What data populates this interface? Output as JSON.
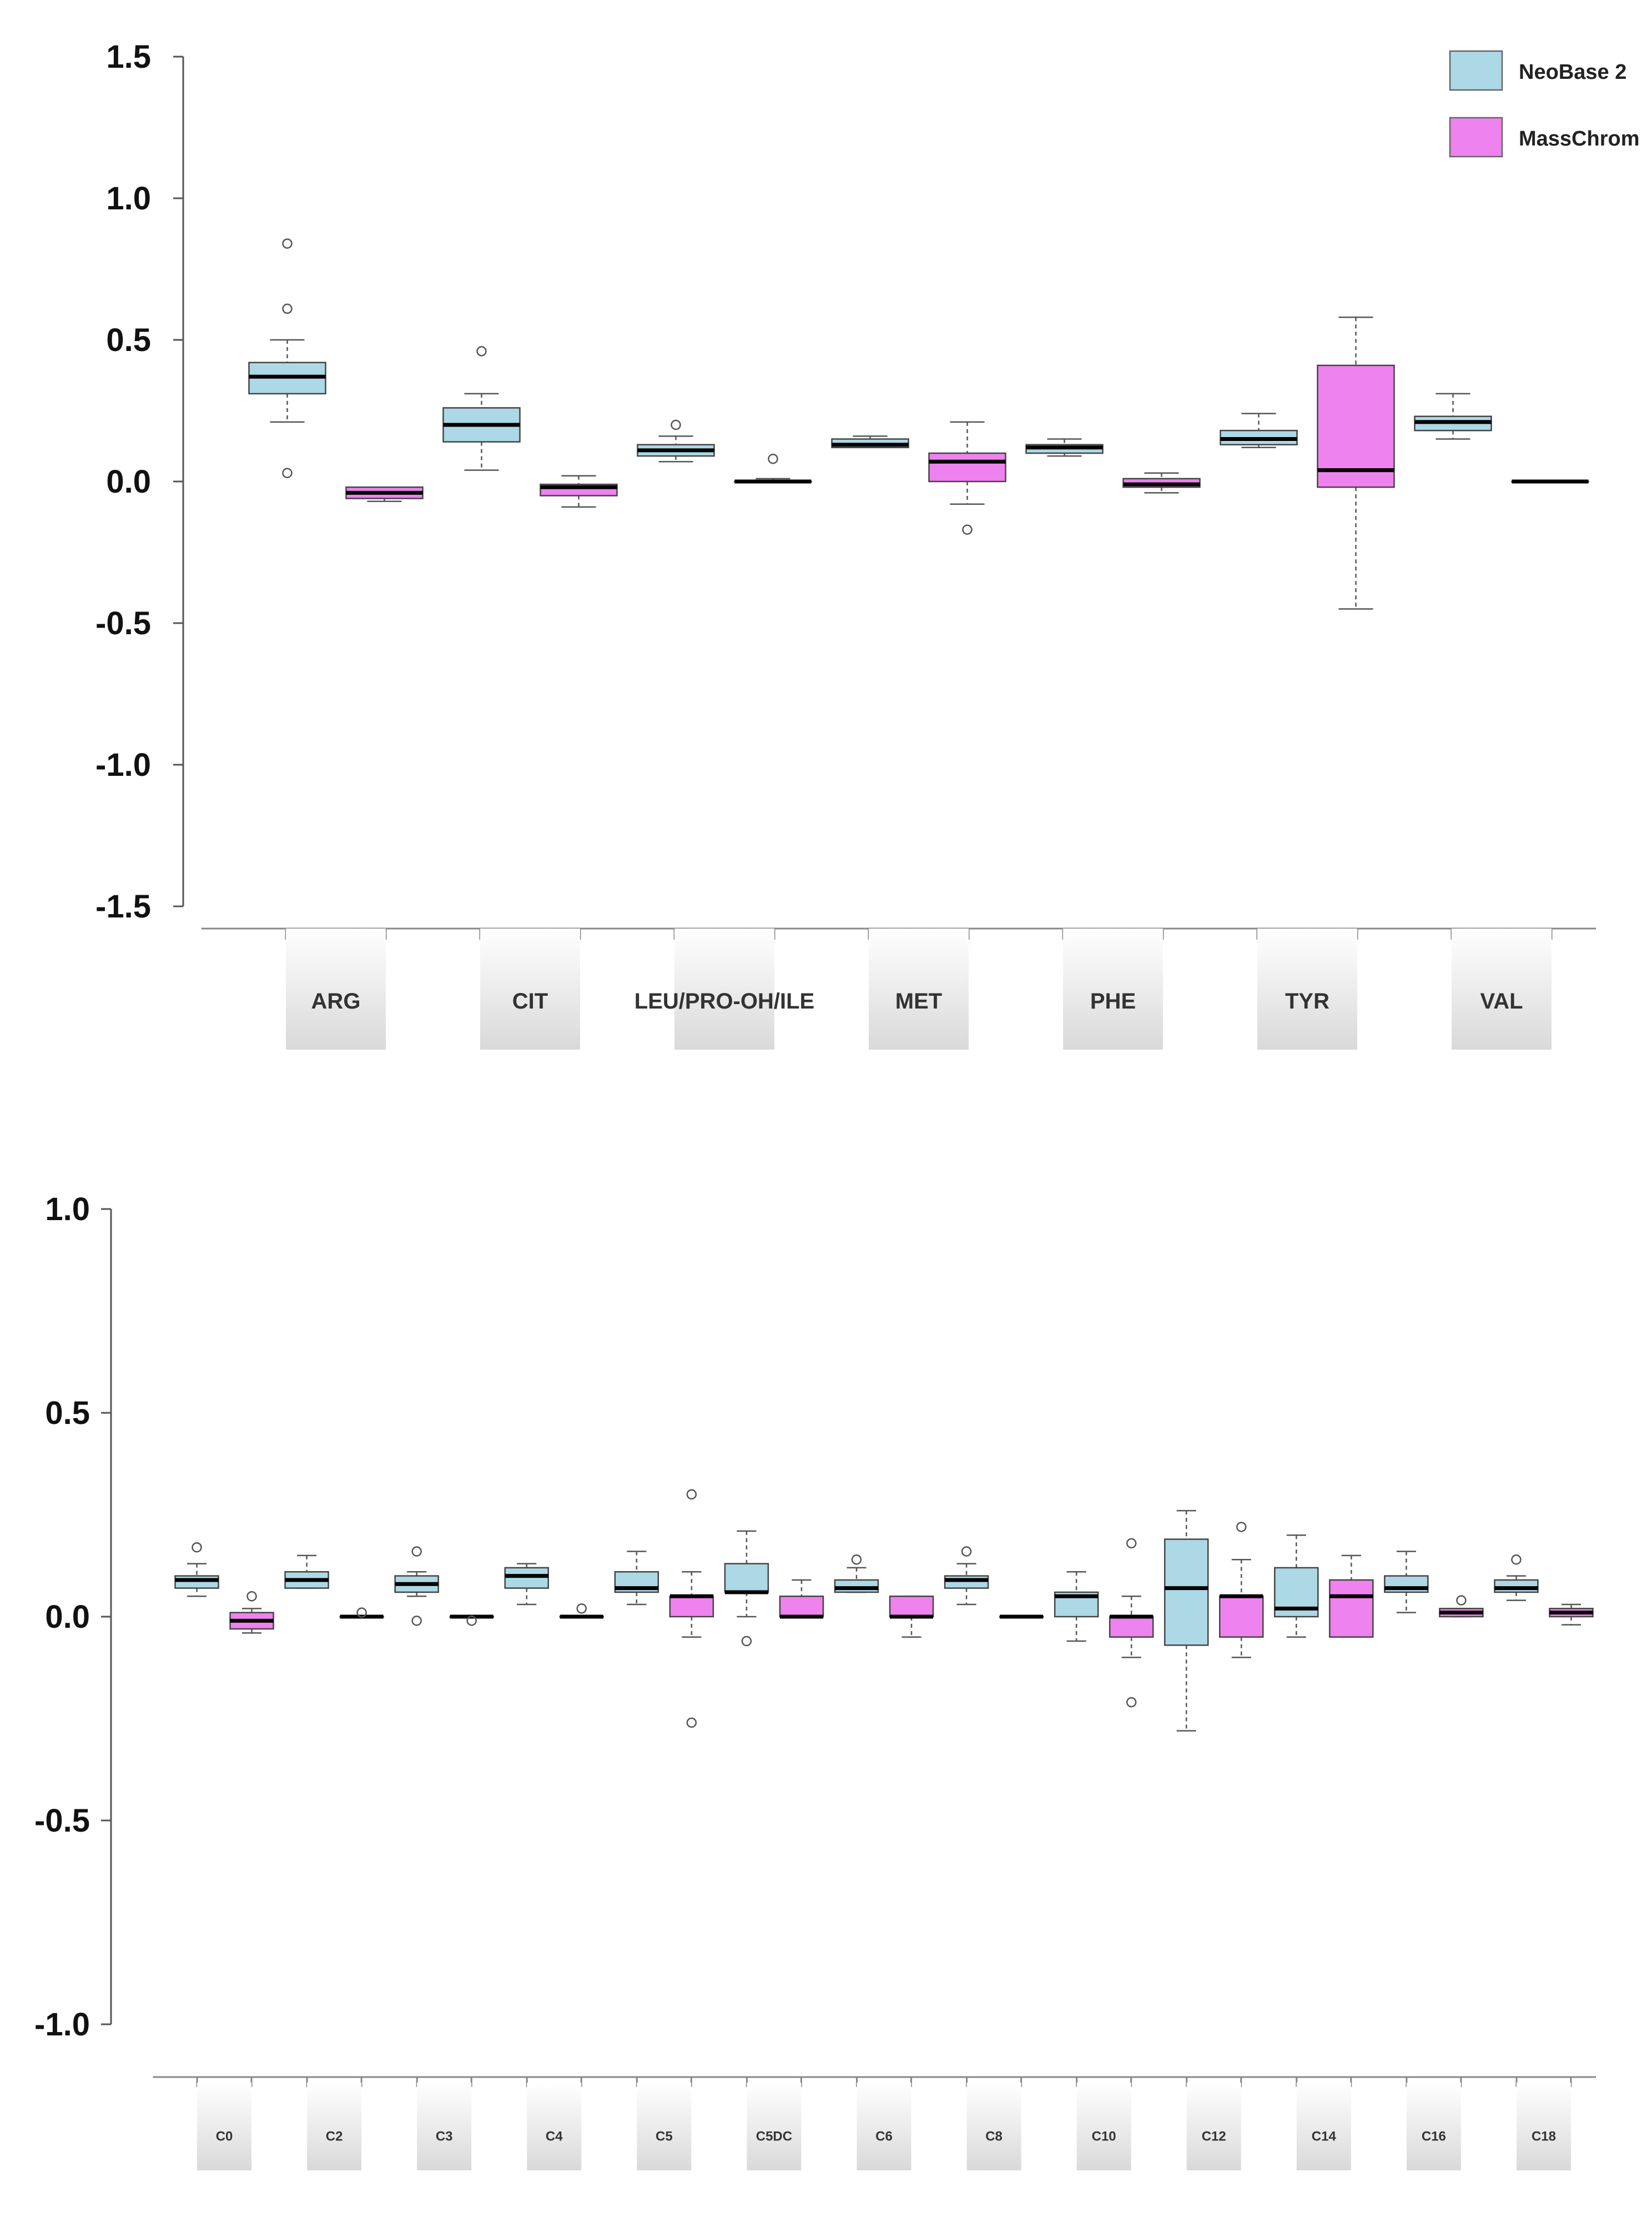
{
  "legend": {
    "items": [
      {
        "name": "NeoBase 2",
        "color": "#add8e6"
      },
      {
        "name": "MassChrom",
        "color": "#ee82ee"
      }
    ]
  },
  "colors": {
    "neobase": "#add8e6",
    "masschrom": "#ee82ee",
    "median": "#000000",
    "axis": "#555555"
  },
  "chart_data": [
    {
      "type": "boxplot",
      "title": "",
      "xlabel": "",
      "ylabel": "",
      "ylim": [
        -1.5,
        1.5
      ],
      "yticks": [
        "1.5",
        "1.0",
        "0.5",
        "0.0",
        "-0.5",
        "-1.0",
        "-1.5"
      ],
      "ytick_values": [
        1.5,
        1.0,
        0.5,
        0.0,
        -0.5,
        -1.0,
        -1.5
      ],
      "categories": [
        "ARG",
        "CIT",
        "LEU/PRO-OH/ILE",
        "MET",
        "PHE",
        "TYR",
        "VAL"
      ],
      "series": [
        {
          "name": "NeoBase 2",
          "boxes": [
            {
              "whislo": 0.21,
              "q1": 0.31,
              "med": 0.37,
              "q3": 0.42,
              "whishi": 0.5,
              "fliers": [
                0.84,
                0.61,
                0.03
              ]
            },
            {
              "whislo": 0.04,
              "q1": 0.14,
              "med": 0.2,
              "q3": 0.26,
              "whishi": 0.31,
              "fliers": [
                0.46
              ]
            },
            {
              "whislo": 0.07,
              "q1": 0.09,
              "med": 0.11,
              "q3": 0.13,
              "whishi": 0.16,
              "fliers": [
                0.2
              ]
            },
            {
              "whislo": 0.12,
              "q1": 0.12,
              "med": 0.13,
              "q3": 0.15,
              "whishi": 0.16,
              "fliers": []
            },
            {
              "whislo": 0.09,
              "q1": 0.1,
              "med": 0.12,
              "q3": 0.13,
              "whishi": 0.15,
              "fliers": []
            },
            {
              "whislo": 0.12,
              "q1": 0.13,
              "med": 0.15,
              "q3": 0.18,
              "whishi": 0.24,
              "fliers": []
            },
            {
              "whislo": 0.15,
              "q1": 0.18,
              "med": 0.21,
              "q3": 0.23,
              "whishi": 0.31,
              "fliers": []
            }
          ]
        },
        {
          "name": "MassChrom",
          "boxes": [
            {
              "whislo": -0.07,
              "q1": -0.06,
              "med": -0.04,
              "q3": -0.02,
              "whishi": -0.02,
              "fliers": []
            },
            {
              "whislo": -0.09,
              "q1": -0.05,
              "med": -0.02,
              "q3": -0.01,
              "whishi": 0.02,
              "fliers": []
            },
            {
              "whislo": 0.0,
              "q1": 0.0,
              "med": 0.0,
              "q3": 0.0,
              "whishi": 0.01,
              "fliers": [
                0.08
              ]
            },
            {
              "whislo": -0.08,
              "q1": 0.0,
              "med": 0.07,
              "q3": 0.1,
              "whishi": 0.21,
              "fliers": [
                -0.17
              ]
            },
            {
              "whislo": -0.04,
              "q1": -0.02,
              "med": -0.01,
              "q3": 0.01,
              "whishi": 0.03,
              "fliers": []
            },
            {
              "whislo": -0.45,
              "q1": -0.02,
              "med": 0.04,
              "q3": 0.41,
              "whishi": 0.58,
              "fliers": []
            },
            {
              "whislo": 0.0,
              "q1": 0.0,
              "med": 0.0,
              "q3": 0.0,
              "whishi": 0.0,
              "fliers": []
            }
          ]
        }
      ]
    },
    {
      "type": "boxplot",
      "title": "",
      "xlabel": "",
      "ylabel": "",
      "ylim": [
        -1.0,
        1.0
      ],
      "yticks": [
        "1.0",
        "0.5",
        "0.0",
        "-0.5",
        "-1.0"
      ],
      "ytick_values": [
        1.0,
        0.5,
        0.0,
        -0.5,
        -1.0
      ],
      "categories": [
        "C0",
        "C2",
        "C3",
        "C4",
        "C5",
        "C5DC",
        "C6",
        "C8",
        "C10",
        "C12",
        "C14",
        "C16",
        "C18"
      ],
      "series": [
        {
          "name": "NeoBase 2",
          "boxes": [
            {
              "whislo": 0.05,
              "q1": 0.07,
              "med": 0.09,
              "q3": 0.1,
              "whishi": 0.13,
              "fliers": [
                0.17
              ]
            },
            {
              "whislo": 0.07,
              "q1": 0.07,
              "med": 0.09,
              "q3": 0.11,
              "whishi": 0.15,
              "fliers": []
            },
            {
              "whislo": 0.05,
              "q1": 0.06,
              "med": 0.08,
              "q3": 0.1,
              "whishi": 0.11,
              "fliers": [
                0.16,
                -0.01
              ]
            },
            {
              "whislo": 0.03,
              "q1": 0.07,
              "med": 0.1,
              "q3": 0.12,
              "whishi": 0.13,
              "fliers": []
            },
            {
              "whislo": 0.03,
              "q1": 0.06,
              "med": 0.07,
              "q3": 0.11,
              "whishi": 0.16,
              "fliers": []
            },
            {
              "whislo": 0.0,
              "q1": 0.06,
              "med": 0.06,
              "q3": 0.13,
              "whishi": 0.21,
              "fliers": [
                -0.06
              ]
            },
            {
              "whislo": 0.06,
              "q1": 0.06,
              "med": 0.07,
              "q3": 0.09,
              "whishi": 0.12,
              "fliers": [
                0.14
              ]
            },
            {
              "whislo": 0.03,
              "q1": 0.07,
              "med": 0.09,
              "q3": 0.1,
              "whishi": 0.13,
              "fliers": [
                0.16
              ]
            },
            {
              "whislo": -0.06,
              "q1": 0.0,
              "med": 0.05,
              "q3": 0.06,
              "whishi": 0.11,
              "fliers": []
            },
            {
              "whislo": -0.28,
              "q1": -0.07,
              "med": 0.07,
              "q3": 0.19,
              "whishi": 0.26,
              "fliers": []
            },
            {
              "whislo": -0.05,
              "q1": 0.0,
              "med": 0.02,
              "q3": 0.12,
              "whishi": 0.2,
              "fliers": []
            },
            {
              "whislo": 0.01,
              "q1": 0.06,
              "med": 0.07,
              "q3": 0.1,
              "whishi": 0.16,
              "fliers": []
            },
            {
              "whislo": 0.04,
              "q1": 0.06,
              "med": 0.07,
              "q3": 0.09,
              "whishi": 0.1,
              "fliers": [
                0.14
              ]
            }
          ]
        },
        {
          "name": "MassChrom",
          "boxes": [
            {
              "whislo": -0.04,
              "q1": -0.03,
              "med": -0.01,
              "q3": 0.01,
              "whishi": 0.02,
              "fliers": [
                0.05
              ]
            },
            {
              "whislo": 0.0,
              "q1": 0.0,
              "med": 0.0,
              "q3": 0.0,
              "whishi": 0.0,
              "fliers": [
                0.01
              ]
            },
            {
              "whislo": 0.0,
              "q1": 0.0,
              "med": 0.0,
              "q3": 0.0,
              "whishi": 0.0,
              "fliers": [
                -0.01
              ]
            },
            {
              "whislo": 0.0,
              "q1": 0.0,
              "med": 0.0,
              "q3": 0.0,
              "whishi": 0.0,
              "fliers": [
                0.02
              ]
            },
            {
              "whislo": -0.05,
              "q1": 0.0,
              "med": 0.05,
              "q3": 0.05,
              "whishi": 0.11,
              "fliers": [
                0.3,
                -0.26
              ]
            },
            {
              "whislo": 0.0,
              "q1": 0.0,
              "med": 0.0,
              "q3": 0.05,
              "whishi": 0.09,
              "fliers": []
            },
            {
              "whislo": -0.05,
              "q1": 0.0,
              "med": 0.0,
              "q3": 0.05,
              "whishi": 0.05,
              "fliers": []
            },
            {
              "whislo": 0.0,
              "q1": 0.0,
              "med": 0.0,
              "q3": 0.0,
              "whishi": 0.0,
              "fliers": []
            },
            {
              "whislo": -0.1,
              "q1": -0.05,
              "med": 0.0,
              "q3": 0.0,
              "whishi": 0.05,
              "fliers": [
                0.18,
                -0.21
              ]
            },
            {
              "whislo": -0.1,
              "q1": -0.05,
              "med": 0.05,
              "q3": 0.05,
              "whishi": 0.14,
              "fliers": [
                0.22
              ]
            },
            {
              "whislo": -0.05,
              "q1": -0.05,
              "med": 0.05,
              "q3": 0.09,
              "whishi": 0.15,
              "fliers": []
            },
            {
              "whislo": 0.0,
              "q1": 0.0,
              "med": 0.01,
              "q3": 0.02,
              "whishi": 0.02,
              "fliers": [
                0.04
              ]
            },
            {
              "whislo": -0.02,
              "q1": 0.0,
              "med": 0.01,
              "q3": 0.02,
              "whishi": 0.03,
              "fliers": []
            }
          ]
        }
      ]
    }
  ]
}
